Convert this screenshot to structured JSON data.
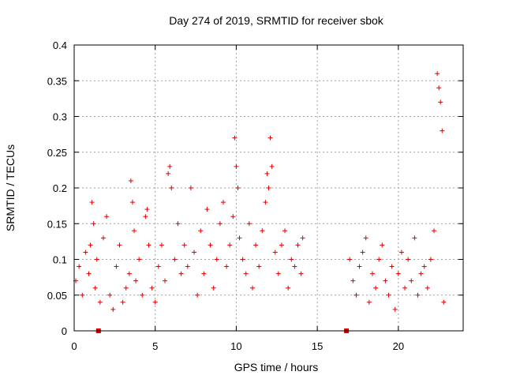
{
  "chart_data": {
    "type": "scatter",
    "title": "Day 274 of 2019, SRMTID for receiver sbok",
    "xlabel": "GPS time / hours",
    "ylabel": "SRMTID / TECUs",
    "xlim": [
      0,
      24
    ],
    "ylim": [
      0,
      0.4
    ],
    "x_ticks": [
      0,
      5,
      10,
      15,
      20
    ],
    "x_tick_labels": [
      "0",
      "5",
      "10",
      "15",
      "20"
    ],
    "y_ticks": [
      0,
      0.05,
      0.1,
      0.15,
      0.2,
      0.25,
      0.3,
      0.35,
      0.4
    ],
    "y_tick_labels": [
      "0",
      "0.05",
      "0.1",
      "0.15",
      "0.2",
      "0.25",
      "0.3",
      "0.35",
      "0.4"
    ],
    "grid": true,
    "marker": "plus",
    "series_color": "#e00000",
    "gap_markers": [
      {
        "x": 1.5,
        "y": 0
      },
      {
        "x": 16.8,
        "y": 0
      }
    ],
    "series": [
      {
        "name": "SRMTID",
        "x": [
          0.1,
          0.3,
          0.5,
          0.7,
          0.9,
          1.0,
          1.1,
          1.2,
          1.3,
          1.4,
          1.6,
          1.8,
          2.0,
          2.2,
          2.4,
          2.6,
          2.8,
          3.0,
          3.2,
          3.4,
          3.5,
          3.6,
          3.7,
          3.8,
          4.0,
          4.2,
          4.4,
          4.5,
          4.6,
          4.8,
          5.0,
          5.2,
          5.4,
          5.6,
          5.8,
          5.9,
          6.0,
          6.2,
          6.4,
          6.6,
          6.8,
          7.0,
          7.2,
          7.4,
          7.6,
          7.8,
          8.0,
          8.2,
          8.4,
          8.6,
          8.8,
          9.0,
          9.2,
          9.4,
          9.6,
          9.8,
          9.9,
          10.0,
          10.1,
          10.2,
          10.4,
          10.6,
          10.8,
          11.0,
          11.2,
          11.4,
          11.6,
          11.8,
          11.9,
          12.0,
          12.1,
          12.2,
          12.4,
          12.6,
          12.8,
          13.0,
          13.2,
          13.4,
          13.6,
          13.8,
          14.0,
          14.1,
          17.0,
          17.2,
          17.4,
          17.6,
          17.8,
          18.0,
          18.2,
          18.4,
          18.6,
          18.8,
          19.0,
          19.2,
          19.4,
          19.6,
          19.8,
          20.0,
          20.2,
          20.4,
          20.6,
          20.8,
          21.0,
          21.2,
          21.4,
          21.6,
          21.8,
          22.0,
          22.2,
          22.4,
          22.5,
          22.6,
          22.7,
          22.8
        ],
        "y": [
          0.07,
          0.09,
          0.05,
          0.11,
          0.08,
          0.12,
          0.18,
          0.15,
          0.06,
          0.1,
          0.04,
          0.13,
          0.16,
          0.05,
          0.03,
          0.09,
          0.12,
          0.04,
          0.06,
          0.08,
          0.21,
          0.18,
          0.14,
          0.07,
          0.1,
          0.05,
          0.16,
          0.17,
          0.12,
          0.06,
          0.04,
          0.09,
          0.12,
          0.07,
          0.22,
          0.23,
          0.2,
          0.1,
          0.15,
          0.08,
          0.12,
          0.09,
          0.2,
          0.11,
          0.05,
          0.14,
          0.08,
          0.17,
          0.12,
          0.06,
          0.1,
          0.15,
          0.18,
          0.09,
          0.12,
          0.16,
          0.27,
          0.23,
          0.2,
          0.13,
          0.1,
          0.08,
          0.15,
          0.06,
          0.12,
          0.09,
          0.14,
          0.18,
          0.22,
          0.2,
          0.27,
          0.23,
          0.11,
          0.08,
          0.12,
          0.14,
          0.06,
          0.1,
          0.09,
          0.12,
          0.08,
          0.13,
          0.1,
          0.07,
          0.05,
          0.09,
          0.11,
          0.13,
          0.04,
          0.08,
          0.06,
          0.1,
          0.12,
          0.07,
          0.05,
          0.09,
          0.03,
          0.08,
          0.11,
          0.06,
          0.1,
          0.07,
          0.13,
          0.05,
          0.08,
          0.09,
          0.06,
          0.1,
          0.14,
          0.36,
          0.34,
          0.32,
          0.28,
          0.04
        ]
      }
    ]
  }
}
